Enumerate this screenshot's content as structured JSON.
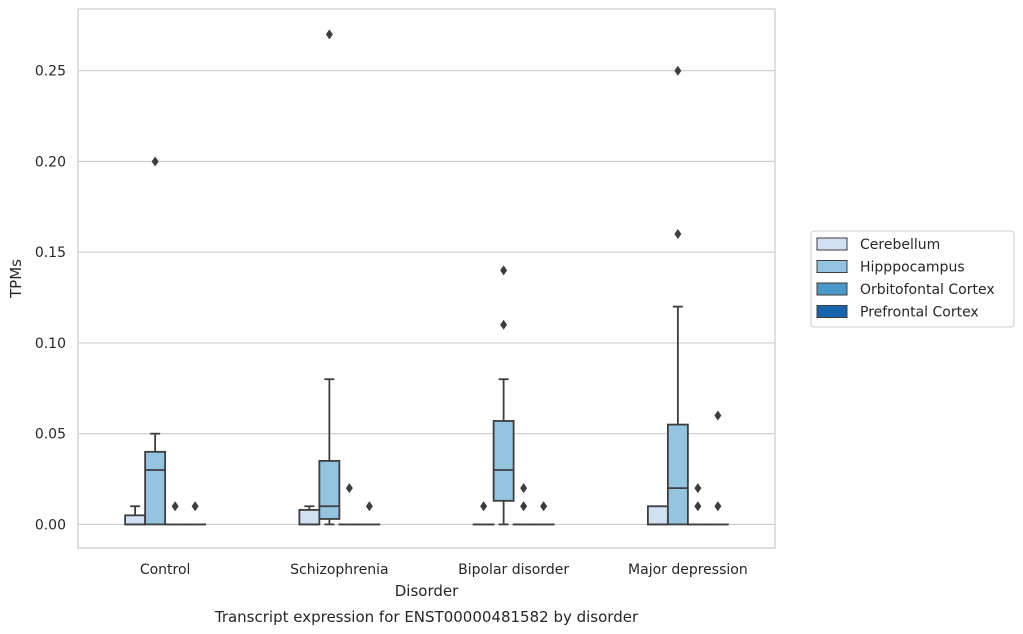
{
  "chart_data": {
    "type": "box",
    "title": "",
    "caption": "Transcript expression for ENST00000481582 by disorder",
    "xlabel": "Disorder",
    "ylabel": "TPMs",
    "ylim": [
      -0.013,
      0.284
    ],
    "yticks": [
      0.0,
      0.05,
      0.1,
      0.15,
      0.2,
      0.25
    ],
    "ytick_labels": [
      "0.00",
      "0.05",
      "0.10",
      "0.15",
      "0.20",
      "0.25"
    ],
    "grid": "horizontal",
    "legend_position": "center-right",
    "categories": [
      "Control",
      "Schizophrenia",
      "Bipolar disorder",
      "Major depression"
    ],
    "series": [
      {
        "name": "Cerebellum",
        "color": "#d0e1f2",
        "boxes": [
          {
            "q1": 0.0,
            "median": 0.0,
            "q3": 0.005,
            "whisker_low": 0.0,
            "whisker_high": 0.01,
            "outliers": []
          },
          {
            "q1": 0.0,
            "median": 0.0,
            "q3": 0.008,
            "whisker_low": 0.0,
            "whisker_high": 0.01,
            "outliers": []
          },
          {
            "q1": 0.0,
            "median": 0.0,
            "q3": 0.0,
            "whisker_low": 0.0,
            "whisker_high": 0.0,
            "outliers": [
              0.01
            ]
          },
          {
            "q1": 0.0,
            "median": 0.0,
            "q3": 0.01,
            "whisker_low": 0.0,
            "whisker_high": 0.01,
            "outliers": []
          }
        ]
      },
      {
        "name": "Hipppocampus",
        "color": "#94c4df",
        "boxes": [
          {
            "q1": 0.0,
            "median": 0.03,
            "q3": 0.04,
            "whisker_low": 0.0,
            "whisker_high": 0.05,
            "outliers": [
              0.2
            ]
          },
          {
            "q1": 0.003,
            "median": 0.01,
            "q3": 0.035,
            "whisker_low": 0.0,
            "whisker_high": 0.08,
            "outliers": [
              0.27
            ]
          },
          {
            "q1": 0.013,
            "median": 0.03,
            "q3": 0.057,
            "whisker_low": 0.0,
            "whisker_high": 0.08,
            "outliers": [
              0.11,
              0.14
            ]
          },
          {
            "q1": 0.0,
            "median": 0.02,
            "q3": 0.055,
            "whisker_low": 0.0,
            "whisker_high": 0.12,
            "outliers": [
              0.16,
              0.25
            ]
          }
        ]
      },
      {
        "name": "Orbitofontal Cortex",
        "color": "#4a98c9",
        "boxes": [
          {
            "q1": 0.0,
            "median": 0.0,
            "q3": 0.0,
            "whisker_low": 0.0,
            "whisker_high": 0.0,
            "outliers": [
              0.01
            ]
          },
          {
            "q1": 0.0,
            "median": 0.0,
            "q3": 0.0,
            "whisker_low": 0.0,
            "whisker_high": 0.0,
            "outliers": [
              0.02
            ]
          },
          {
            "q1": 0.0,
            "median": 0.0,
            "q3": 0.0,
            "whisker_low": 0.0,
            "whisker_high": 0.0,
            "outliers": [
              0.01,
              0.02
            ]
          },
          {
            "q1": 0.0,
            "median": 0.0,
            "q3": 0.0,
            "whisker_low": 0.0,
            "whisker_high": 0.0,
            "outliers": [
              0.01,
              0.02
            ]
          }
        ]
      },
      {
        "name": "Prefrontal Cortex",
        "color": "#1764ab",
        "boxes": [
          {
            "q1": 0.0,
            "median": 0.0,
            "q3": 0.0,
            "whisker_low": 0.0,
            "whisker_high": 0.0,
            "outliers": [
              0.01
            ]
          },
          {
            "q1": 0.0,
            "median": 0.0,
            "q3": 0.0,
            "whisker_low": 0.0,
            "whisker_high": 0.0,
            "outliers": [
              0.01
            ]
          },
          {
            "q1": 0.0,
            "median": 0.0,
            "q3": 0.0,
            "whisker_low": 0.0,
            "whisker_high": 0.0,
            "outliers": [
              0.01
            ]
          },
          {
            "q1": 0.0,
            "median": 0.0,
            "q3": 0.0,
            "whisker_low": 0.0,
            "whisker_high": 0.0,
            "outliers": [
              0.01,
              0.06
            ]
          }
        ]
      }
    ]
  }
}
